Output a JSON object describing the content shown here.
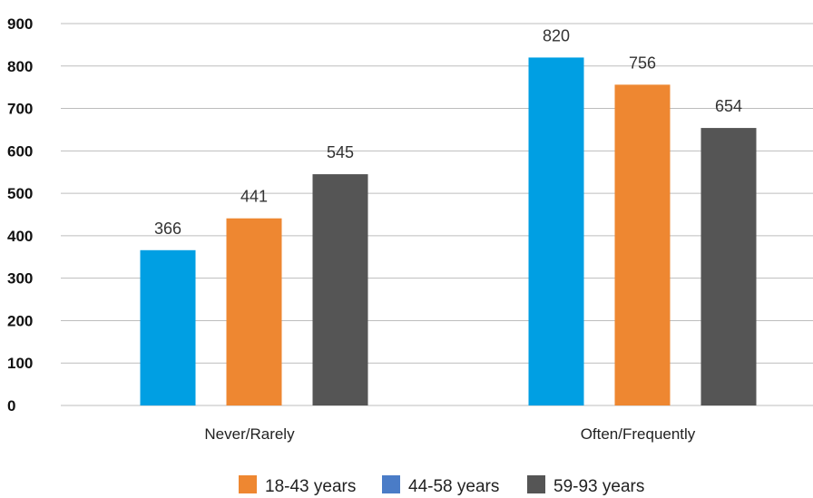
{
  "chart_data": {
    "type": "bar",
    "title": "",
    "xlabel": "",
    "ylabel": "",
    "categories": [
      "Never/Rarely",
      "Often/Frequently"
    ],
    "ylim": [
      0,
      900
    ],
    "yticks": [
      0,
      100,
      200,
      300,
      400,
      500,
      600,
      700,
      800,
      900
    ],
    "grid": true,
    "legend_position": "bottom",
    "bar_colors": [
      "#009fe3",
      "#ee8731",
      "#555555"
    ],
    "series": [
      {
        "values": [
          366,
          820
        ]
      },
      {
        "values": [
          441,
          756
        ]
      },
      {
        "values": [
          545,
          654
        ]
      }
    ],
    "data_labels": [
      [
        "366",
        "820"
      ],
      [
        "441",
        "756"
      ],
      [
        "545",
        "654"
      ]
    ],
    "legend": [
      {
        "label": "18-43 years",
        "color": "#ee8731"
      },
      {
        "label": "44-58 years",
        "color": "#4a7cc7"
      },
      {
        "label": "59-93 years",
        "color": "#555555"
      }
    ]
  }
}
